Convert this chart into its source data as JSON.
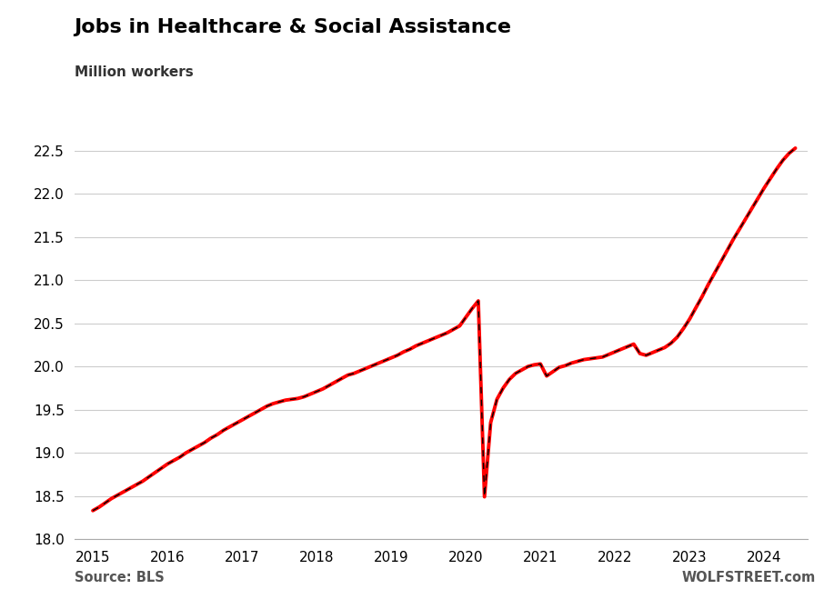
{
  "title": "Jobs in Healthcare & Social Assistance",
  "subtitle": "Million workers",
  "source_left": "Source: BLS",
  "source_right": "WOLFSTREET.com",
  "ylim": [
    18.0,
    22.65
  ],
  "yticks": [
    18.0,
    18.5,
    19.0,
    19.5,
    20.0,
    20.5,
    21.0,
    21.5,
    22.0,
    22.5
  ],
  "xticks": [
    2015,
    2016,
    2017,
    2018,
    2019,
    2020,
    2021,
    2022,
    2023,
    2024
  ],
  "line_color_main": "#FF0000",
  "line_color_dash": "#000000",
  "background_color": "#FFFFFF",
  "grid_color": "#CCCCCC",
  "data": [
    [
      2015.0,
      18.33
    ],
    [
      2015.083,
      18.37
    ],
    [
      2015.167,
      18.42
    ],
    [
      2015.25,
      18.47
    ],
    [
      2015.333,
      18.51
    ],
    [
      2015.417,
      18.55
    ],
    [
      2015.5,
      18.59
    ],
    [
      2015.583,
      18.63
    ],
    [
      2015.667,
      18.67
    ],
    [
      2015.75,
      18.72
    ],
    [
      2015.833,
      18.77
    ],
    [
      2015.917,
      18.82
    ],
    [
      2016.0,
      18.87
    ],
    [
      2016.083,
      18.91
    ],
    [
      2016.167,
      18.95
    ],
    [
      2016.25,
      19.0
    ],
    [
      2016.333,
      19.04
    ],
    [
      2016.417,
      19.08
    ],
    [
      2016.5,
      19.12
    ],
    [
      2016.583,
      19.17
    ],
    [
      2016.667,
      19.21
    ],
    [
      2016.75,
      19.26
    ],
    [
      2016.833,
      19.3
    ],
    [
      2016.917,
      19.34
    ],
    [
      2017.0,
      19.38
    ],
    [
      2017.083,
      19.42
    ],
    [
      2017.167,
      19.46
    ],
    [
      2017.25,
      19.5
    ],
    [
      2017.333,
      19.54
    ],
    [
      2017.417,
      19.57
    ],
    [
      2017.5,
      19.59
    ],
    [
      2017.583,
      19.61
    ],
    [
      2017.667,
      19.62
    ],
    [
      2017.75,
      19.63
    ],
    [
      2017.833,
      19.65
    ],
    [
      2017.917,
      19.68
    ],
    [
      2018.0,
      19.71
    ],
    [
      2018.083,
      19.74
    ],
    [
      2018.167,
      19.78
    ],
    [
      2018.25,
      19.82
    ],
    [
      2018.333,
      19.86
    ],
    [
      2018.417,
      19.9
    ],
    [
      2018.5,
      19.92
    ],
    [
      2018.583,
      19.95
    ],
    [
      2018.667,
      19.98
    ],
    [
      2018.75,
      20.01
    ],
    [
      2018.833,
      20.04
    ],
    [
      2018.917,
      20.07
    ],
    [
      2019.0,
      20.1
    ],
    [
      2019.083,
      20.13
    ],
    [
      2019.167,
      20.17
    ],
    [
      2019.25,
      20.2
    ],
    [
      2019.333,
      20.24
    ],
    [
      2019.417,
      20.27
    ],
    [
      2019.5,
      20.3
    ],
    [
      2019.583,
      20.33
    ],
    [
      2019.667,
      20.36
    ],
    [
      2019.75,
      20.39
    ],
    [
      2019.833,
      20.43
    ],
    [
      2019.917,
      20.47
    ],
    [
      2020.0,
      20.57
    ],
    [
      2020.083,
      20.67
    ],
    [
      2020.167,
      20.76
    ],
    [
      2020.25,
      18.49
    ],
    [
      2020.333,
      19.35
    ],
    [
      2020.417,
      19.62
    ],
    [
      2020.5,
      19.75
    ],
    [
      2020.583,
      19.85
    ],
    [
      2020.667,
      19.92
    ],
    [
      2020.75,
      19.96
    ],
    [
      2020.833,
      20.0
    ],
    [
      2020.917,
      20.02
    ],
    [
      2021.0,
      20.03
    ],
    [
      2021.083,
      19.89
    ],
    [
      2021.167,
      19.94
    ],
    [
      2021.25,
      19.99
    ],
    [
      2021.333,
      20.01
    ],
    [
      2021.417,
      20.04
    ],
    [
      2021.5,
      20.06
    ],
    [
      2021.583,
      20.08
    ],
    [
      2021.667,
      20.09
    ],
    [
      2021.75,
      20.1
    ],
    [
      2021.833,
      20.11
    ],
    [
      2021.917,
      20.14
    ],
    [
      2022.0,
      20.17
    ],
    [
      2022.083,
      20.2
    ],
    [
      2022.167,
      20.23
    ],
    [
      2022.25,
      20.26
    ],
    [
      2022.333,
      20.15
    ],
    [
      2022.417,
      20.13
    ],
    [
      2022.5,
      20.16
    ],
    [
      2022.583,
      20.19
    ],
    [
      2022.667,
      20.22
    ],
    [
      2022.75,
      20.27
    ],
    [
      2022.833,
      20.34
    ],
    [
      2022.917,
      20.44
    ],
    [
      2023.0,
      20.55
    ],
    [
      2023.083,
      20.68
    ],
    [
      2023.167,
      20.81
    ],
    [
      2023.25,
      20.95
    ],
    [
      2023.333,
      21.08
    ],
    [
      2023.417,
      21.21
    ],
    [
      2023.5,
      21.34
    ],
    [
      2023.583,
      21.47
    ],
    [
      2023.667,
      21.59
    ],
    [
      2023.75,
      21.71
    ],
    [
      2023.833,
      21.83
    ],
    [
      2023.917,
      21.95
    ],
    [
      2024.0,
      22.07
    ],
    [
      2024.083,
      22.18
    ],
    [
      2024.167,
      22.29
    ],
    [
      2024.25,
      22.39
    ],
    [
      2024.333,
      22.47
    ],
    [
      2024.417,
      22.53
    ]
  ]
}
